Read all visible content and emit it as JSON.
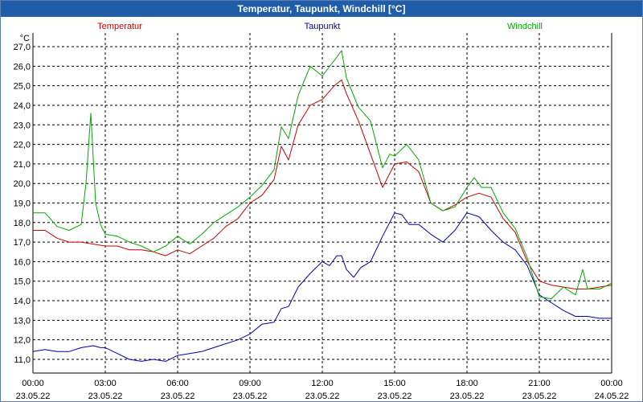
{
  "window": {
    "title": "Temperatur, Taupunkt, Windchill [°C]"
  },
  "chart_data": {
    "type": "line",
    "title": "Temperatur, Taupunkt, Windchill [°C]",
    "ylabel": "°C",
    "ylim": [
      10.3,
      27.7
    ],
    "xlim": [
      0,
      24
    ],
    "grid": true,
    "y_ticks": [
      "11,0",
      "12,0",
      "13,0",
      "14,0",
      "15,0",
      "16,0",
      "17,0",
      "18,0",
      "19,0",
      "20,0",
      "21,0",
      "22,0",
      "23,0",
      "24,0",
      "25,0",
      "26,0",
      "27,0"
    ],
    "x_ticks": [
      {
        "time": "00:00",
        "date": "23.05.22"
      },
      {
        "time": "03:00",
        "date": "23.05.22"
      },
      {
        "time": "06:00",
        "date": "23.05.22"
      },
      {
        "time": "09:00",
        "date": "23.05.22"
      },
      {
        "time": "12:00",
        "date": "23.05.22"
      },
      {
        "time": "15:00",
        "date": "23.05.22"
      },
      {
        "time": "18:00",
        "date": "23.05.22"
      },
      {
        "time": "21:00",
        "date": "23.05.22"
      },
      {
        "time": "00:00",
        "date": "24.05.22"
      }
    ],
    "series": [
      {
        "name": "Temperatur",
        "color": "#cc0000",
        "x": [
          0,
          0.5,
          1,
          1.5,
          2,
          2.5,
          3,
          3.5,
          4,
          4.5,
          5,
          5.5,
          6,
          6.5,
          7,
          7.5,
          8,
          8.5,
          9,
          9.5,
          10,
          10.3,
          10.6,
          11,
          11.5,
          12,
          12.5,
          12.8,
          13,
          13.5,
          14,
          14.5,
          15,
          15.5,
          16,
          16.5,
          17,
          17.5,
          18,
          18.5,
          19,
          19.5,
          20,
          20.5,
          21,
          21.5,
          22,
          22.5,
          23,
          23.5,
          24
        ],
        "values": [
          17.6,
          17.6,
          17.2,
          17.0,
          17.0,
          16.9,
          16.8,
          16.8,
          16.6,
          16.6,
          16.5,
          16.3,
          16.6,
          16.4,
          16.8,
          17.2,
          17.8,
          18.2,
          19.0,
          19.4,
          20.2,
          21.9,
          21.2,
          23.0,
          24.0,
          24.3,
          25.0,
          25.3,
          24.6,
          23.2,
          21.5,
          19.8,
          21.0,
          21.1,
          20.6,
          19.0,
          18.6,
          18.9,
          19.3,
          19.5,
          19.3,
          18.2,
          17.5,
          16.0,
          15.0,
          14.8,
          14.7,
          14.6,
          14.6,
          14.7,
          14.8
        ]
      },
      {
        "name": "Taupunkt",
        "color": "#0000aa",
        "x": [
          0,
          0.5,
          1,
          1.5,
          2,
          2.5,
          2.8,
          3,
          3.5,
          4,
          4.5,
          5,
          5.5,
          6,
          6.5,
          7,
          7.5,
          8,
          8.5,
          9,
          9.5,
          10,
          10.3,
          10.6,
          11,
          11.5,
          12,
          12.3,
          12.6,
          12.8,
          13,
          13.3,
          13.6,
          14,
          14.5,
          15,
          15.3,
          15.6,
          16,
          16.5,
          17,
          17.5,
          18,
          18.5,
          19,
          19.5,
          20,
          20.5,
          21,
          21.5,
          22,
          22.5,
          23,
          23.5,
          24
        ],
        "values": [
          11.4,
          11.5,
          11.4,
          11.4,
          11.6,
          11.7,
          11.6,
          11.6,
          11.3,
          11.0,
          10.9,
          11.0,
          10.9,
          11.2,
          11.3,
          11.4,
          11.6,
          11.8,
          12.0,
          12.3,
          12.8,
          12.9,
          13.6,
          13.7,
          14.7,
          15.4,
          16.0,
          15.8,
          16.3,
          16.3,
          15.6,
          15.2,
          15.7,
          16.0,
          17.3,
          18.5,
          18.4,
          17.9,
          17.9,
          17.4,
          17.0,
          17.6,
          18.5,
          18.3,
          17.6,
          17.0,
          16.6,
          15.8,
          14.3,
          13.9,
          13.5,
          13.2,
          13.2,
          13.1,
          13.1
        ]
      },
      {
        "name": "Windchill",
        "color": "#00aa00",
        "x": [
          0,
          0.5,
          1,
          1.5,
          2,
          2.2,
          2.4,
          2.6,
          2.8,
          3,
          3.5,
          4,
          4.5,
          5,
          5.5,
          6,
          6.5,
          7,
          7.5,
          8,
          8.5,
          9,
          9.5,
          10,
          10.3,
          10.6,
          11,
          11.5,
          12,
          12.5,
          12.8,
          13,
          13.5,
          14,
          14.5,
          14.8,
          15,
          15.5,
          16,
          16.5,
          17,
          17.5,
          18,
          18.3,
          18.6,
          19,
          19.5,
          20,
          20.5,
          21,
          21.5,
          22,
          22.5,
          22.8,
          23,
          23.5,
          24
        ],
        "values": [
          18.5,
          18.5,
          17.8,
          17.6,
          17.9,
          20.0,
          23.6,
          19.0,
          17.9,
          17.4,
          17.3,
          17.0,
          16.8,
          16.5,
          16.8,
          17.3,
          16.9,
          17.4,
          18.0,
          18.4,
          18.8,
          19.3,
          19.9,
          20.7,
          22.9,
          22.3,
          24.5,
          26.0,
          25.5,
          26.3,
          26.8,
          25.4,
          23.9,
          23.2,
          20.8,
          21.5,
          21.4,
          22.0,
          21.2,
          19.0,
          18.6,
          18.8,
          19.8,
          20.3,
          19.8,
          19.8,
          18.5,
          17.7,
          16.2,
          14.2,
          14.1,
          14.7,
          14.3,
          15.6,
          14.6,
          14.6,
          14.9
        ]
      }
    ]
  }
}
